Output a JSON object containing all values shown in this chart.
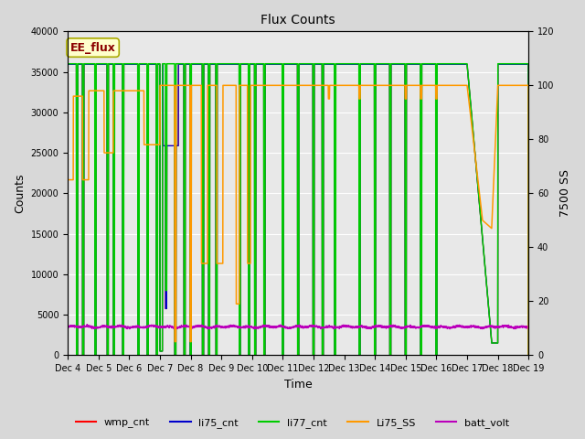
{
  "title": "Flux Counts",
  "xlabel": "Time",
  "ylabel_left": "Counts",
  "ylabel_right": "7500 SS",
  "ylim_left": [
    0,
    40000
  ],
  "ylim_right": [
    0,
    120
  ],
  "fig_bg": "#d8d8d8",
  "plot_bg": "#e8e8e8",
  "annotation_text": "EE_flux",
  "annotation_color": "#8b0000",
  "annotation_bg": "#ffffcc",
  "annotation_edge": "#aaaa00",
  "xtick_labels": [
    "Dec 4",
    "Dec 5",
    "Dec 6",
    "Dec 7",
    "Dec 8",
    "Dec 9",
    "Dec 10",
    "Dec 11",
    "Dec 12",
    "Dec 13",
    "Dec 14",
    "Dec 15",
    "Dec 16",
    "Dec 17",
    "Dec 18",
    "Dec 19"
  ],
  "series_colors": {
    "wmp_cnt": "#ff0000",
    "li75_cnt": "#0000cc",
    "li77_cnt": "#00cc00",
    "Li75_SS": "#ff9900",
    "batt_volt": "#bb00bb"
  },
  "legend_labels": [
    "wmp_cnt",
    "li75_cnt",
    "li77_cnt",
    "Li75_SS",
    "batt_volt"
  ],
  "legend_colors": [
    "#ff0000",
    "#0000cc",
    "#00cc00",
    "#ff9900",
    "#bb00bb"
  ],
  "grid_color": "#ffffff",
  "title_fontsize": 10,
  "axis_fontsize": 9,
  "tick_fontsize": 7,
  "legend_fontsize": 8
}
